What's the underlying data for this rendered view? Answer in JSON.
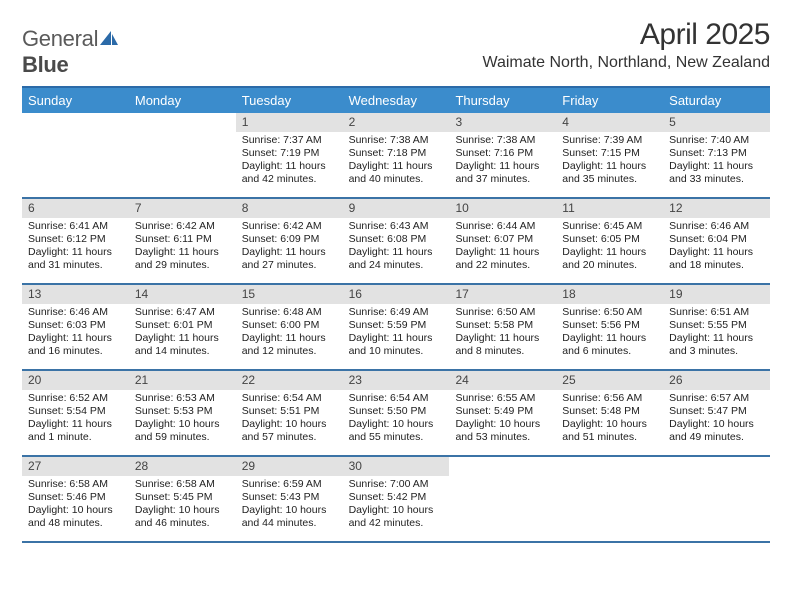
{
  "logo": {
    "part1": "General",
    "part2": "Blue",
    "icon_color": "#2b6aa8"
  },
  "title": "April 2025",
  "location": "Waimate North, Northland, New Zealand",
  "header_bg": "#3b8ccc",
  "header_border": "#2b6aa8",
  "row_border": "#3b73a6",
  "daynum_bg": "#e2e2e2",
  "dow": [
    "Sunday",
    "Monday",
    "Tuesday",
    "Wednesday",
    "Thursday",
    "Friday",
    "Saturday"
  ],
  "weeks": [
    [
      null,
      null,
      {
        "d": "1",
        "sr": "Sunrise: 7:37 AM",
        "ss": "Sunset: 7:19 PM",
        "dl": "Daylight: 11 hours and 42 minutes."
      },
      {
        "d": "2",
        "sr": "Sunrise: 7:38 AM",
        "ss": "Sunset: 7:18 PM",
        "dl": "Daylight: 11 hours and 40 minutes."
      },
      {
        "d": "3",
        "sr": "Sunrise: 7:38 AM",
        "ss": "Sunset: 7:16 PM",
        "dl": "Daylight: 11 hours and 37 minutes."
      },
      {
        "d": "4",
        "sr": "Sunrise: 7:39 AM",
        "ss": "Sunset: 7:15 PM",
        "dl": "Daylight: 11 hours and 35 minutes."
      },
      {
        "d": "5",
        "sr": "Sunrise: 7:40 AM",
        "ss": "Sunset: 7:13 PM",
        "dl": "Daylight: 11 hours and 33 minutes."
      }
    ],
    [
      {
        "d": "6",
        "sr": "Sunrise: 6:41 AM",
        "ss": "Sunset: 6:12 PM",
        "dl": "Daylight: 11 hours and 31 minutes."
      },
      {
        "d": "7",
        "sr": "Sunrise: 6:42 AM",
        "ss": "Sunset: 6:11 PM",
        "dl": "Daylight: 11 hours and 29 minutes."
      },
      {
        "d": "8",
        "sr": "Sunrise: 6:42 AM",
        "ss": "Sunset: 6:09 PM",
        "dl": "Daylight: 11 hours and 27 minutes."
      },
      {
        "d": "9",
        "sr": "Sunrise: 6:43 AM",
        "ss": "Sunset: 6:08 PM",
        "dl": "Daylight: 11 hours and 24 minutes."
      },
      {
        "d": "10",
        "sr": "Sunrise: 6:44 AM",
        "ss": "Sunset: 6:07 PM",
        "dl": "Daylight: 11 hours and 22 minutes."
      },
      {
        "d": "11",
        "sr": "Sunrise: 6:45 AM",
        "ss": "Sunset: 6:05 PM",
        "dl": "Daylight: 11 hours and 20 minutes."
      },
      {
        "d": "12",
        "sr": "Sunrise: 6:46 AM",
        "ss": "Sunset: 6:04 PM",
        "dl": "Daylight: 11 hours and 18 minutes."
      }
    ],
    [
      {
        "d": "13",
        "sr": "Sunrise: 6:46 AM",
        "ss": "Sunset: 6:03 PM",
        "dl": "Daylight: 11 hours and 16 minutes."
      },
      {
        "d": "14",
        "sr": "Sunrise: 6:47 AM",
        "ss": "Sunset: 6:01 PM",
        "dl": "Daylight: 11 hours and 14 minutes."
      },
      {
        "d": "15",
        "sr": "Sunrise: 6:48 AM",
        "ss": "Sunset: 6:00 PM",
        "dl": "Daylight: 11 hours and 12 minutes."
      },
      {
        "d": "16",
        "sr": "Sunrise: 6:49 AM",
        "ss": "Sunset: 5:59 PM",
        "dl": "Daylight: 11 hours and 10 minutes."
      },
      {
        "d": "17",
        "sr": "Sunrise: 6:50 AM",
        "ss": "Sunset: 5:58 PM",
        "dl": "Daylight: 11 hours and 8 minutes."
      },
      {
        "d": "18",
        "sr": "Sunrise: 6:50 AM",
        "ss": "Sunset: 5:56 PM",
        "dl": "Daylight: 11 hours and 6 minutes."
      },
      {
        "d": "19",
        "sr": "Sunrise: 6:51 AM",
        "ss": "Sunset: 5:55 PM",
        "dl": "Daylight: 11 hours and 3 minutes."
      }
    ],
    [
      {
        "d": "20",
        "sr": "Sunrise: 6:52 AM",
        "ss": "Sunset: 5:54 PM",
        "dl": "Daylight: 11 hours and 1 minute."
      },
      {
        "d": "21",
        "sr": "Sunrise: 6:53 AM",
        "ss": "Sunset: 5:53 PM",
        "dl": "Daylight: 10 hours and 59 minutes."
      },
      {
        "d": "22",
        "sr": "Sunrise: 6:54 AM",
        "ss": "Sunset: 5:51 PM",
        "dl": "Daylight: 10 hours and 57 minutes."
      },
      {
        "d": "23",
        "sr": "Sunrise: 6:54 AM",
        "ss": "Sunset: 5:50 PM",
        "dl": "Daylight: 10 hours and 55 minutes."
      },
      {
        "d": "24",
        "sr": "Sunrise: 6:55 AM",
        "ss": "Sunset: 5:49 PM",
        "dl": "Daylight: 10 hours and 53 minutes."
      },
      {
        "d": "25",
        "sr": "Sunrise: 6:56 AM",
        "ss": "Sunset: 5:48 PM",
        "dl": "Daylight: 10 hours and 51 minutes."
      },
      {
        "d": "26",
        "sr": "Sunrise: 6:57 AM",
        "ss": "Sunset: 5:47 PM",
        "dl": "Daylight: 10 hours and 49 minutes."
      }
    ],
    [
      {
        "d": "27",
        "sr": "Sunrise: 6:58 AM",
        "ss": "Sunset: 5:46 PM",
        "dl": "Daylight: 10 hours and 48 minutes."
      },
      {
        "d": "28",
        "sr": "Sunrise: 6:58 AM",
        "ss": "Sunset: 5:45 PM",
        "dl": "Daylight: 10 hours and 46 minutes."
      },
      {
        "d": "29",
        "sr": "Sunrise: 6:59 AM",
        "ss": "Sunset: 5:43 PM",
        "dl": "Daylight: 10 hours and 44 minutes."
      },
      {
        "d": "30",
        "sr": "Sunrise: 7:00 AM",
        "ss": "Sunset: 5:42 PM",
        "dl": "Daylight: 10 hours and 42 minutes."
      },
      null,
      null,
      null
    ]
  ]
}
